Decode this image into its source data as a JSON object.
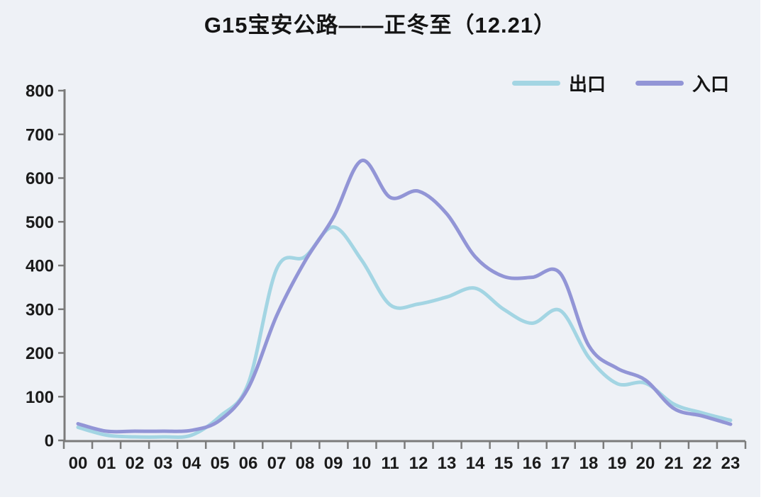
{
  "chart_data": {
    "type": "line",
    "title": "G15宝安公路——正冬至（12.21）",
    "xlabel": "",
    "ylabel": "",
    "categories": [
      "00",
      "01",
      "02",
      "03",
      "04",
      "05",
      "06",
      "07",
      "08",
      "09",
      "10",
      "11",
      "12",
      "13",
      "14",
      "15",
      "16",
      "17",
      "18",
      "19",
      "20",
      "21",
      "22",
      "23"
    ],
    "y_ticks": [
      0,
      100,
      200,
      300,
      400,
      500,
      600,
      700,
      800
    ],
    "ylim": [
      0,
      800
    ],
    "grid": false,
    "smooth": true,
    "legend_position": "top-right",
    "series": [
      {
        "id": "exit-series-line",
        "name": "出口",
        "color": "#a3d5e3",
        "values": [
          30,
          12,
          8,
          8,
          12,
          55,
          130,
          392,
          420,
          488,
          412,
          310,
          312,
          328,
          348,
          300,
          268,
          297,
          190,
          130,
          131,
          83,
          63,
          46
        ]
      },
      {
        "id": "entrance-series-line",
        "name": "入口",
        "color": "#9295d6",
        "values": [
          38,
          21,
          21,
          21,
          23,
          46,
          120,
          285,
          410,
          510,
          640,
          556,
          570,
          518,
          420,
          375,
          373,
          382,
          217,
          165,
          138,
          73,
          56,
          37
        ]
      }
    ]
  },
  "colors": {
    "background": "#eef1f6",
    "frame": "#ffffff",
    "axis": "#7b7b7b",
    "label_text": "#1b1b1b",
    "title_text": "#141414"
  }
}
